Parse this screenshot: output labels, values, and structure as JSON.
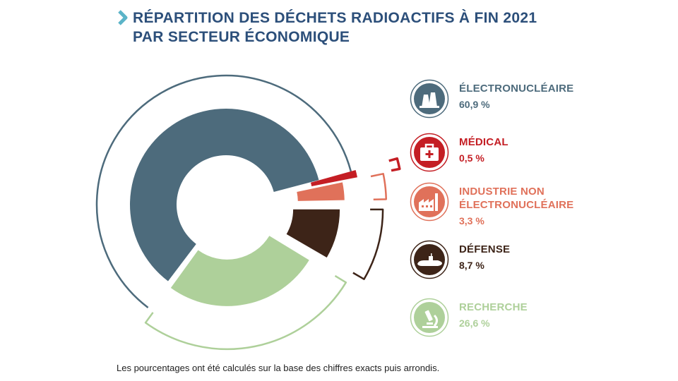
{
  "title_lines": [
    "RÉPARTITION DES DÉCHETS RADIOACTIFS À FIN 2021",
    "PAR SECTEUR ÉCONOMIQUE"
  ],
  "colors": {
    "title": "#2c4f7a",
    "chevron": "#5bb4c8"
  },
  "chart_data": {
    "type": "pie",
    "variant": "donut",
    "unit": "%",
    "categories": [
      "ÉLECTRONUCLÉAIRE",
      "MÉDICAL",
      "INDUSTRIE NON ÉLECTRONUCLÉAIRE",
      "DÉFENSE",
      "RECHERCHE"
    ],
    "values": [
      60.9,
      0.5,
      3.3,
      8.7,
      26.6
    ],
    "colors": [
      "#4d6b7c",
      "#c41e24",
      "#e0715a",
      "#3d2418",
      "#aed09a"
    ],
    "icons": [
      "power-plant-icon",
      "medical-kit-icon",
      "factory-icon",
      "submarine-icon",
      "microscope-icon"
    ]
  },
  "legend": [
    {
      "label_lines": [
        "ÉLECTRONUCLÉAIRE"
      ],
      "value": "60,9 %",
      "color": "#4d6b7c",
      "icon": "power-plant-icon"
    },
    {
      "label_lines": [
        "MÉDICAL"
      ],
      "value": "0,5 %",
      "color": "#c41e24",
      "icon": "medical-kit-icon"
    },
    {
      "label_lines": [
        "INDUSTRIE NON",
        "ÉLECTRONUCLÉAIRE"
      ],
      "value": "3,3 %",
      "color": "#e0715a",
      "icon": "factory-icon"
    },
    {
      "label_lines": [
        "DÉFENSE"
      ],
      "value": "8,7 %",
      "color": "#3d2418",
      "icon": "submarine-icon"
    },
    {
      "label_lines": [
        "RECHERCHE"
      ],
      "value": "26,6 %",
      "color": "#aed09a",
      "icon": "microscope-icon"
    }
  ],
  "footnote": "Les pourcentages ont été calculés sur la base des chiffres exacts puis arrondis."
}
